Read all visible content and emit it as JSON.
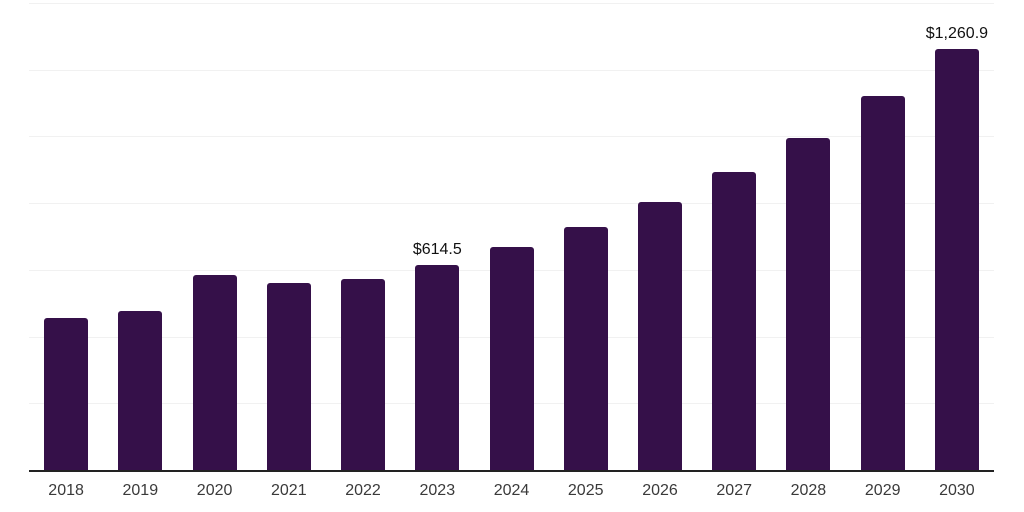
{
  "chart": {
    "colors": {
      "background": "#ffffff",
      "bar": "#351049",
      "gridline": "#f1f1f1",
      "axis_line": "#222222",
      "data_label": "#111111",
      "tick_label": "#3a3a3a"
    }
  },
  "chart_data": {
    "type": "bar",
    "categories": [
      "2018",
      "2019",
      "2020",
      "2021",
      "2022",
      "2023",
      "2024",
      "2025",
      "2026",
      "2027",
      "2028",
      "2029",
      "2030"
    ],
    "values": [
      455,
      476,
      584,
      560,
      572,
      614.5,
      670,
      730,
      805,
      895,
      995,
      1122,
      1260.9
    ],
    "value_labels": {
      "2023": "$614.5",
      "2030": "$1,260.9"
    },
    "ylim": [
      0,
      1400
    ],
    "gridline_step": 200,
    "grid": "horizontal",
    "y_tick_labels_visible": false,
    "legend": "none"
  }
}
